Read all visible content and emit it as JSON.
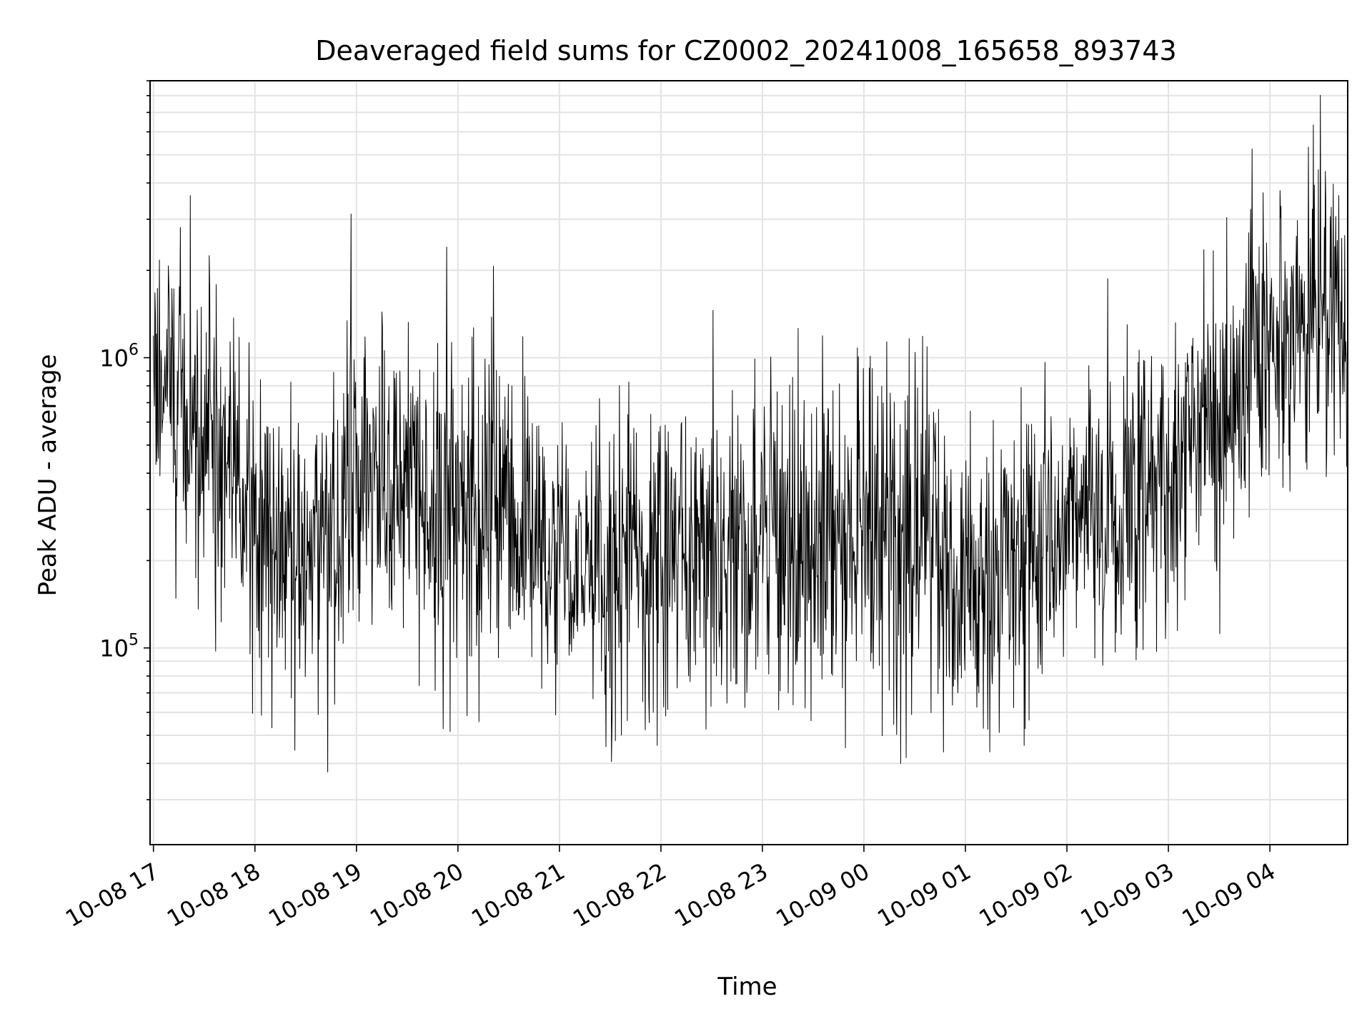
{
  "chart_data": {
    "type": "line",
    "title": "Deaveraged field sums for CZ0002_20241008_165658_893743",
    "xlabel": "Time",
    "ylabel": "Peak ADU - average",
    "yscale": "log",
    "ylim": [
      21000,
      9000000
    ],
    "xlim": [
      "2024-10-08 16:58",
      "2024-10-09 04:46"
    ],
    "grid": true,
    "line_color": "#000000",
    "x_ticks": [
      "10-08 17",
      "10-08 18",
      "10-08 19",
      "10-08 20",
      "10-08 21",
      "10-08 22",
      "10-08 23",
      "10-09 00",
      "10-09 01",
      "10-09 02",
      "10-09 03",
      "10-09 04"
    ],
    "y_ticks": [
      {
        "base": "10",
        "exp": "5",
        "value": 100000
      },
      {
        "base": "10",
        "exp": "6",
        "value": 1000000
      }
    ],
    "series": [
      {
        "x": [
          "2024-10-08 17:00",
          "2024-10-08 17:30",
          "2024-10-08 18:00",
          "2024-10-08 18:30",
          "2024-10-08 19:00",
          "2024-10-08 19:30",
          "2024-10-08 20:00",
          "2024-10-08 20:30",
          "2024-10-08 21:00",
          "2024-10-08 21:30",
          "2024-10-08 22:00",
          "2024-10-08 22:30",
          "2024-10-08 23:00",
          "2024-10-08 23:30",
          "2024-10-09 00:00",
          "2024-10-09 00:30",
          "2024-10-09 01:00",
          "2024-10-09 01:30",
          "2024-10-09 02:00",
          "2024-10-09 02:30",
          "2024-10-09 03:00",
          "2024-10-09 03:30",
          "2024-10-09 04:00",
          "2024-10-09 04:30",
          "2024-10-09 04:46"
        ],
        "y": [
          750000,
          700000,
          260000,
          200000,
          300000,
          400000,
          280000,
          330000,
          200000,
          210000,
          180000,
          220000,
          240000,
          230000,
          250000,
          270000,
          150000,
          230000,
          260000,
          280000,
          450000,
          600000,
          1200000,
          1300000,
          1100000
        ]
      }
    ]
  }
}
